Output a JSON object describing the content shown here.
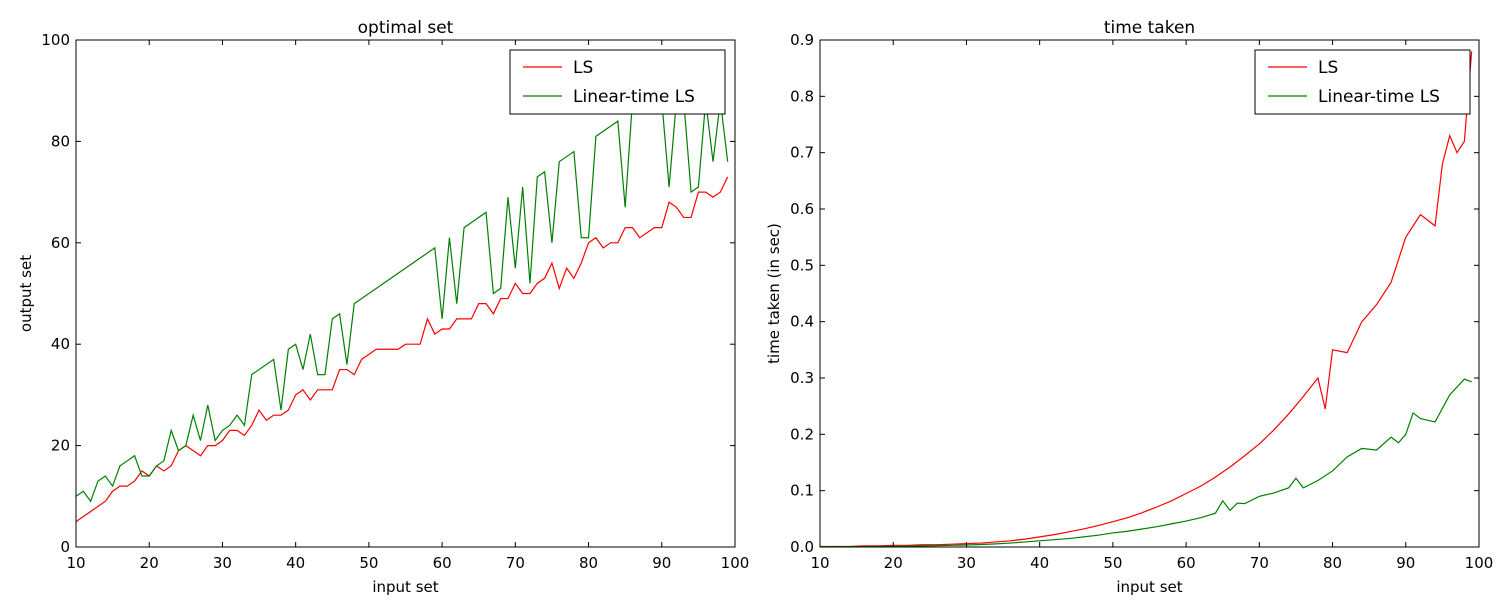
{
  "chart_data": [
    {
      "type": "line",
      "title": "optimal set",
      "xlabel": "input set",
      "ylabel": "output set",
      "xlim": [
        10,
        100
      ],
      "ylim": [
        0,
        100
      ],
      "xticks": [
        "10",
        "20",
        "30",
        "40",
        "50",
        "60",
        "70",
        "80",
        "90",
        "100"
      ],
      "yticks": [
        "0",
        "20",
        "40",
        "60",
        "80",
        "100"
      ],
      "grid": false,
      "legend_position": "top-right",
      "series": [
        {
          "name": "LS",
          "color": "#ff0000",
          "x": [
            10,
            12,
            14,
            15,
            16,
            17,
            18,
            19,
            20,
            21,
            22,
            23,
            24,
            25,
            26,
            27,
            28,
            29,
            30,
            31,
            32,
            33,
            34,
            35,
            36,
            37,
            38,
            39,
            40,
            41,
            42,
            43,
            44,
            45,
            46,
            47,
            48,
            49,
            50,
            51,
            52,
            53,
            54,
            55,
            56,
            57,
            58,
            59,
            60,
            61,
            62,
            63,
            64,
            65,
            66,
            67,
            68,
            69,
            70,
            71,
            72,
            73,
            74,
            75,
            76,
            77,
            78,
            79,
            80,
            81,
            82,
            83,
            84,
            85,
            86,
            87,
            88,
            89,
            90,
            91,
            92,
            93,
            94,
            95,
            96,
            97,
            98,
            99
          ],
          "y": [
            5,
            7,
            9,
            11,
            12,
            12,
            13,
            15,
            14,
            16,
            15,
            16,
            19,
            20,
            19,
            18,
            20,
            20,
            21,
            23,
            23,
            22,
            24,
            27,
            25,
            26,
            26,
            27,
            30,
            31,
            29,
            31,
            31,
            31,
            35,
            35,
            34,
            37,
            38,
            39,
            39,
            39,
            39,
            40,
            40,
            40,
            45,
            42,
            43,
            43,
            45,
            45,
            45,
            48,
            48,
            46,
            49,
            49,
            52,
            50,
            50,
            52,
            53,
            56,
            51,
            55,
            53,
            56,
            60,
            61,
            59,
            60,
            60,
            63,
            63,
            61,
            62,
            63,
            63,
            68,
            67,
            65,
            65,
            70,
            70,
            69,
            70,
            73
          ]
        },
        {
          "name": "Linear-time LS",
          "color": "#008000",
          "x": [
            10,
            11,
            12,
            13,
            14,
            15,
            16,
            17,
            18,
            19,
            20,
            21,
            22,
            23,
            24,
            25,
            26,
            27,
            28,
            29,
            30,
            31,
            32,
            33,
            34,
            37,
            38,
            39,
            40,
            41,
            42,
            43,
            44,
            45,
            46,
            47,
            48,
            59,
            60,
            61,
            62,
            63,
            66,
            67,
            68,
            69,
            70,
            71,
            72,
            73,
            74,
            75,
            76,
            78,
            79,
            80,
            81,
            84,
            85,
            86,
            89,
            90,
            91,
            92,
            93,
            94,
            95,
            96,
            97,
            98,
            99
          ],
          "y": [
            10,
            11,
            9,
            13,
            14,
            12,
            16,
            17,
            18,
            14,
            14,
            16,
            17,
            23,
            19,
            20,
            26,
            21,
            28,
            21,
            23,
            24,
            26,
            24,
            34,
            37,
            27,
            39,
            40,
            35,
            42,
            34,
            34,
            45,
            46,
            36,
            48,
            59,
            45,
            61,
            48,
            63,
            66,
            50,
            51,
            69,
            55,
            71,
            52,
            73,
            74,
            60,
            76,
            78,
            61,
            61,
            81,
            84,
            67,
            88,
            88,
            88,
            71,
            88,
            88,
            70,
            71,
            88,
            76,
            88,
            76
          ]
        }
      ]
    },
    {
      "type": "line",
      "title": "time taken",
      "xlabel": "input set",
      "ylabel": "time taken (in sec)",
      "xlim": [
        10,
        100
      ],
      "ylim": [
        0,
        0.9
      ],
      "xticks": [
        "10",
        "20",
        "30",
        "40",
        "50",
        "60",
        "70",
        "80",
        "90",
        "100"
      ],
      "yticks": [
        "0.0",
        "0.1",
        "0.2",
        "0.3",
        "0.4",
        "0.5",
        "0.6",
        "0.7",
        "0.8",
        "0.9"
      ],
      "grid": false,
      "legend_position": "top-right",
      "series": [
        {
          "name": "LS",
          "color": "#ff0000",
          "x": [
            10,
            12,
            14,
            16,
            18,
            20,
            22,
            24,
            26,
            28,
            30,
            32,
            34,
            36,
            38,
            40,
            42,
            44,
            46,
            48,
            50,
            52,
            54,
            56,
            58,
            60,
            62,
            64,
            66,
            68,
            70,
            72,
            74,
            76,
            78,
            79,
            80,
            82,
            84,
            86,
            88,
            90,
            92,
            94,
            95,
            96,
            97,
            98,
            99
          ],
          "y": [
            0.001,
            0.001,
            0.001,
            0.002,
            0.002,
            0.003,
            0.003,
            0.004,
            0.004,
            0.005,
            0.006,
            0.007,
            0.009,
            0.011,
            0.014,
            0.018,
            0.022,
            0.027,
            0.032,
            0.038,
            0.045,
            0.052,
            0.061,
            0.071,
            0.082,
            0.095,
            0.108,
            0.124,
            0.142,
            0.162,
            0.183,
            0.208,
            0.236,
            0.267,
            0.3,
            0.245,
            0.35,
            0.345,
            0.4,
            0.43,
            0.47,
            0.55,
            0.59,
            0.57,
            0.68,
            0.73,
            0.7,
            0.72,
            0.88
          ]
        },
        {
          "name": "Linear-time LS",
          "color": "#008000",
          "x": [
            10,
            12,
            14,
            16,
            18,
            20,
            22,
            24,
            26,
            28,
            30,
            32,
            34,
            36,
            38,
            40,
            42,
            44,
            46,
            48,
            50,
            52,
            54,
            56,
            58,
            60,
            62,
            64,
            65,
            66,
            67,
            68,
            70,
            72,
            74,
            75,
            76,
            78,
            80,
            82,
            84,
            86,
            88,
            89,
            90,
            91,
            92,
            94,
            96,
            98,
            99
          ],
          "y": [
            0.0005,
            0.0005,
            0.0006,
            0.0008,
            0.001,
            0.0012,
            0.0015,
            0.002,
            0.0025,
            0.003,
            0.0035,
            0.0045,
            0.0055,
            0.007,
            0.009,
            0.011,
            0.013,
            0.015,
            0.018,
            0.021,
            0.025,
            0.028,
            0.032,
            0.036,
            0.041,
            0.046,
            0.052,
            0.06,
            0.082,
            0.065,
            0.078,
            0.077,
            0.09,
            0.096,
            0.105,
            0.122,
            0.105,
            0.118,
            0.135,
            0.16,
            0.175,
            0.172,
            0.195,
            0.185,
            0.2,
            0.238,
            0.228,
            0.222,
            0.27,
            0.298,
            0.293
          ]
        }
      ]
    }
  ]
}
